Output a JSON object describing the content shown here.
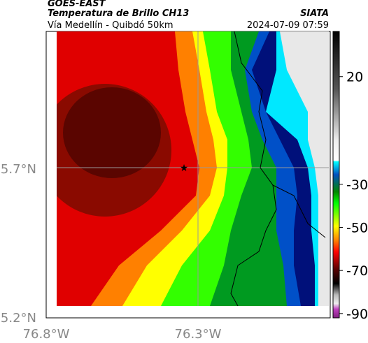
{
  "header": {
    "source": "GOES-EAST",
    "product": "Temperatura de Brillo CH13",
    "region": "Vía Medellín - Quibdó 50km",
    "brand": "SIATA",
    "datetime": "2024-07-09 07:59"
  },
  "map": {
    "lat_labels": [
      "5.7°N",
      "5.2°N"
    ],
    "lon_labels": [
      "76.8°W",
      "76.3°W"
    ]
  },
  "colorbar": {
    "lim": [
      -92,
      41
    ],
    "ticks": [
      20,
      -30,
      -50,
      -70,
      -90
    ]
  }
}
